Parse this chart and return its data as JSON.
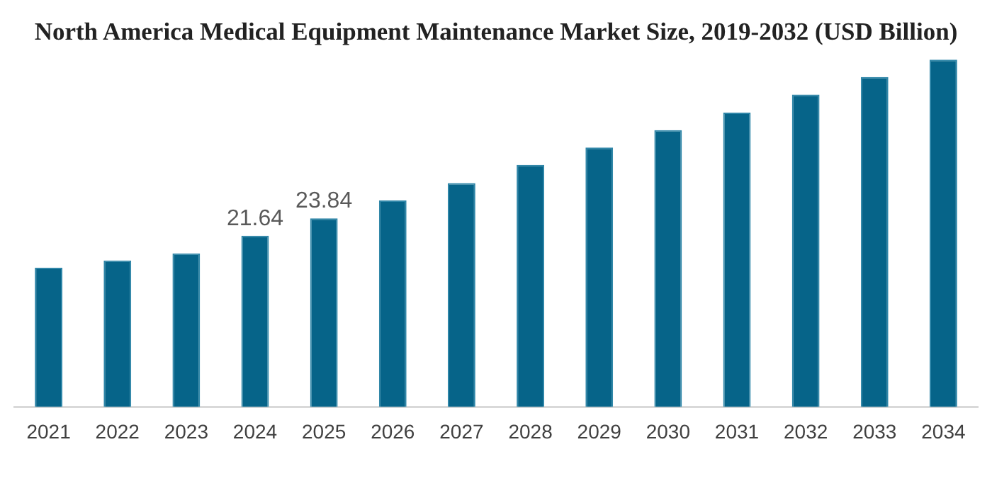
{
  "chart_data": {
    "type": "bar",
    "title": "North America Medical Equipment Maintenance Market Size, 2019-2032 (USD Billion)",
    "categories": [
      "2021",
      "2022",
      "2023",
      "2024",
      "2025",
      "2026",
      "2027",
      "2028",
      "2029",
      "2030",
      "2031",
      "2032",
      "2033",
      "2034"
    ],
    "values": [
      17.6,
      18.5,
      19.4,
      21.64,
      23.84,
      26.1,
      28.3,
      30.6,
      32.8,
      35.0,
      37.2,
      39.5,
      41.7,
      43.9
    ],
    "value_labels": [
      null,
      null,
      null,
      "21.64",
      "23.84",
      null,
      null,
      null,
      null,
      null,
      null,
      null,
      null,
      null
    ],
    "color": "#066489",
    "tick_labels": "x",
    "grid": false,
    "legend": false
  }
}
